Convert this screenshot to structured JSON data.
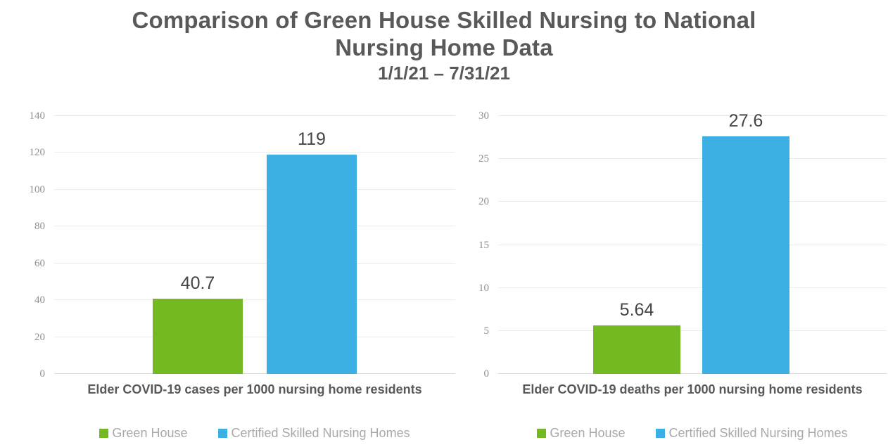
{
  "title": {
    "line1": "Comparison of Green House Skilled Nursing to National",
    "line2": "Nursing Home Data",
    "subtitle": "1/1/21 – 7/31/21"
  },
  "colors": {
    "green": "#75b922",
    "blue": "#3cb0e5",
    "title_text": "#58595b",
    "tick_text": "#8f8f8f",
    "legend_text": "#a9a9a9",
    "data_label_text": "#454545",
    "gridline": "#ebebeb"
  },
  "legend": {
    "items": [
      {
        "label": "Green House",
        "color_key": "green"
      },
      {
        "label": "Certified Skilled Nursing Homes",
        "color_key": "blue"
      }
    ]
  },
  "chart_data": [
    {
      "type": "bar",
      "title": "Elder COVID-19 cases per 1000 nursing home residents",
      "categories": [
        "Green House",
        "Certified Skilled Nursing Homes"
      ],
      "values": [
        40.7,
        119
      ],
      "value_labels": [
        "40.7",
        "119"
      ],
      "ylim": [
        0,
        140
      ],
      "ytick_step": 20,
      "grid": true,
      "legend_position": "bottom"
    },
    {
      "type": "bar",
      "title": "Elder COVID-19 deaths per 1000 nursing home residents",
      "categories": [
        "Green House",
        "Certified Skilled Nursing Homes"
      ],
      "values": [
        5.64,
        27.6
      ],
      "value_labels": [
        "5.64",
        "27.6"
      ],
      "ylim": [
        0,
        30
      ],
      "ytick_step": 5,
      "grid": true,
      "legend_position": "bottom"
    }
  ]
}
